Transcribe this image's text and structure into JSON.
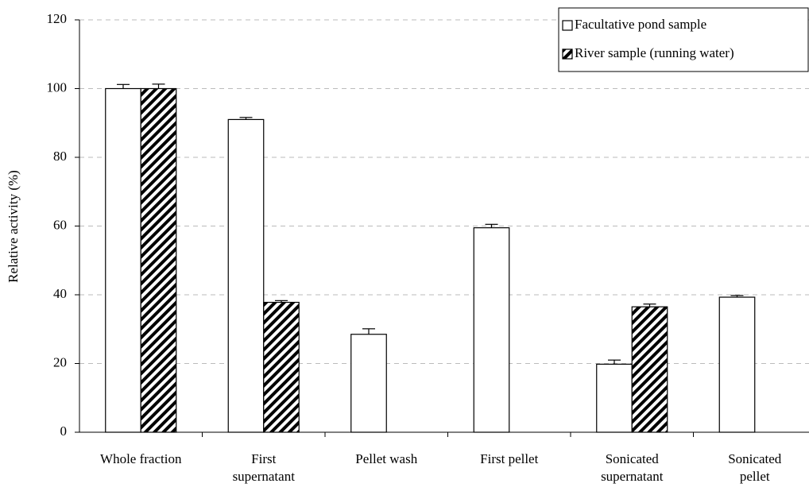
{
  "chart_data": {
    "type": "bar",
    "y_axis_label": "Relative activity (%)",
    "categories": [
      "Whole fraction",
      "First\nsupernatant",
      "Pellet wash",
      "First pellet",
      "Sonicated\nsupernatant",
      "Sonicated\npellet"
    ],
    "series": [
      {
        "name": "Facultative pond sample",
        "color": "#ffffff",
        "pattern": "none",
        "values": [
          100,
          91,
          28.5,
          59.5,
          19.8,
          39.3
        ],
        "errors": [
          1.2,
          0.6,
          1.6,
          1.0,
          1.2,
          0.5
        ]
      },
      {
        "name": "River sample (running water)",
        "color": "#ffffff",
        "pattern": "hatch",
        "values": [
          100,
          37.8,
          null,
          null,
          36.5,
          null
        ],
        "errors": [
          1.3,
          0.5,
          null,
          null,
          0.8,
          null
        ]
      }
    ],
    "ylim": [
      0,
      120
    ],
    "yticks": [
      0,
      20,
      40,
      60,
      80,
      100,
      120
    ],
    "grid": true,
    "legend": "top-right"
  }
}
